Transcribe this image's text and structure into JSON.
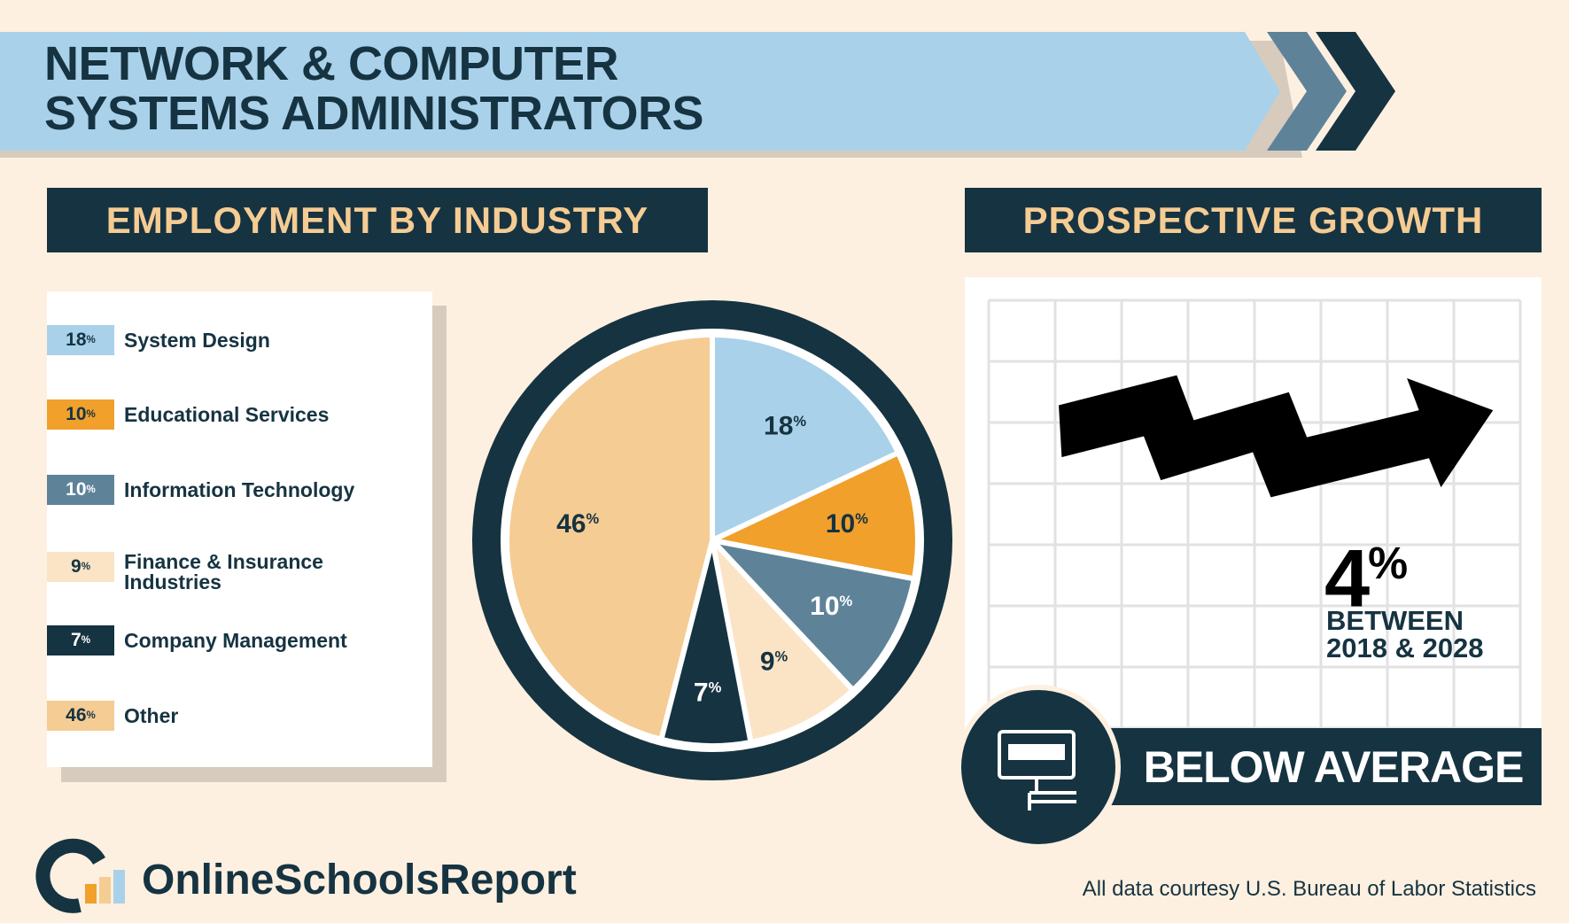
{
  "chart_data": {
    "type": "pie",
    "title": "NETWORK & COMPUTER SYSTEMS ADMINISTRATORS",
    "subtitle": "EMPLOYMENT BY INDUSTRY",
    "categories": [
      "System Design",
      "Educational Services",
      "Information Technology",
      "Finance & Insurance Industries",
      "Company Management",
      "Other"
    ],
    "values": [
      18,
      10,
      10,
      9,
      7,
      46
    ],
    "value_labels": [
      "18%",
      "10%",
      "10%",
      "9%",
      "7%",
      "46%"
    ],
    "colors": [
      "#a9d1ea",
      "#f0a02b",
      "#5e8399",
      "#fbe4c6",
      "#163341",
      "#f5cc93"
    ],
    "legend": "left"
  },
  "growth": {
    "title": "PROSPECTIVE GROWTH",
    "value_label": "4%",
    "period": "BETWEEN 2018 & 2028",
    "rating": "BELOW AVERAGE"
  },
  "footer": {
    "brand": "OnlineSchoolsReport",
    "source": "All data courtesy U.S. Bureau of Labor Statistics"
  }
}
